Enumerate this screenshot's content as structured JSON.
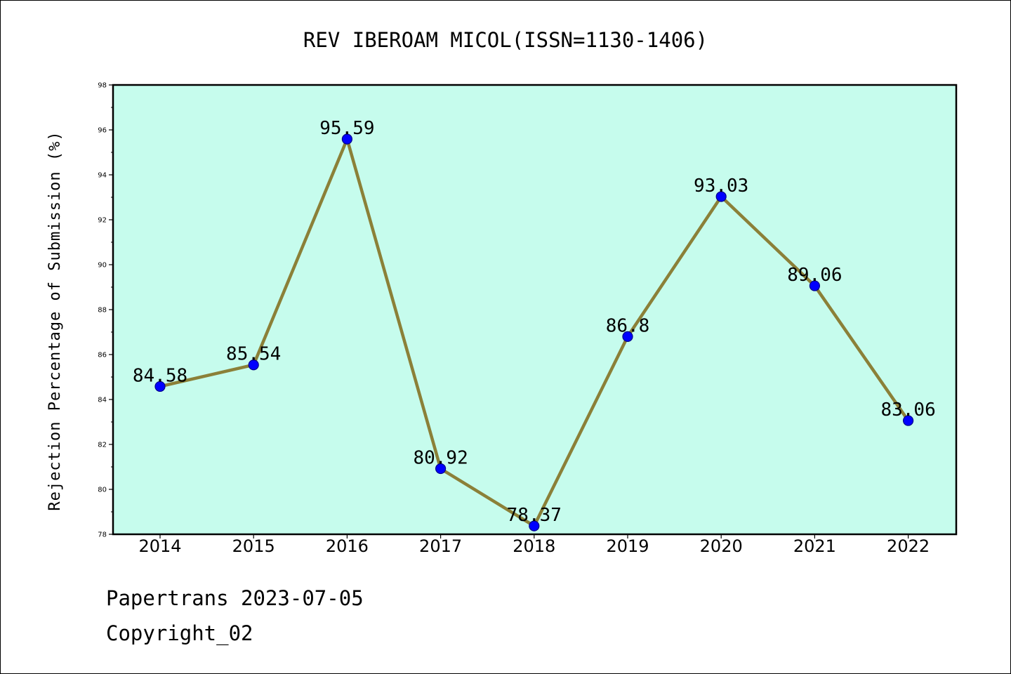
{
  "chart_data": {
    "type": "line",
    "title": "REV IBEROAM MICOL(ISSN=1130-1406)",
    "xlabel": "",
    "ylabel": "Rejection Percentage of Submission (%)",
    "categories": [
      "2014",
      "2015",
      "2016",
      "2017",
      "2018",
      "2019",
      "2020",
      "2021",
      "2022"
    ],
    "series": [
      {
        "values": [
          84.58,
          85.54,
          95.59,
          80.92,
          78.37,
          86.8,
          93.03,
          89.06,
          83.06
        ],
        "labels": [
          "84.58",
          "85.54",
          "95.59",
          "80.92",
          "78.37",
          "86.8",
          "93.03",
          "89.06",
          "83.06"
        ]
      }
    ],
    "ylim": [
      78,
      98
    ],
    "yticks": [
      "78",
      "80",
      "82",
      "84",
      "86",
      "88",
      "90",
      "92",
      "94",
      "96",
      "98"
    ],
    "grid": false,
    "colors": {
      "plot_background": "#c6fced",
      "line": "#8b8038",
      "marker_fill": "#0000ff",
      "marker_edge": "#00008b"
    }
  },
  "footer": {
    "source": "Papertrans 2023-07-05",
    "copyright": "Copyright_02"
  }
}
